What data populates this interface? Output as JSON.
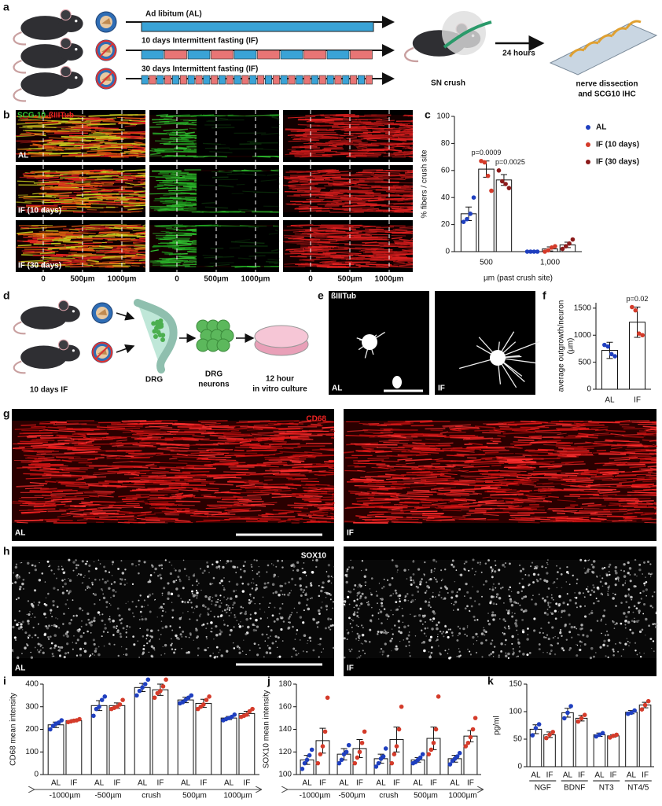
{
  "panel_a": {
    "label": "a",
    "arms": [
      "Ad libitum (AL)",
      "10 days Intermittent fasting (IF)",
      "30 days Intermittent fasting (IF)"
    ],
    "procedure": "SN crush",
    "interval": "24 hours",
    "readout": [
      "nerve dissection",
      "and SCG10 IHC"
    ]
  },
  "panel_b": {
    "label": "b",
    "stain_green": "SCG-10",
    "stain_red": "ßIIITub",
    "rows": [
      "AL",
      "IF (10 days)",
      "IF (30 days)"
    ],
    "distances": [
      "0",
      "500µm",
      "1000µm"
    ]
  },
  "panel_c": {
    "label": "c"
  },
  "panel_d": {
    "label": "d",
    "treatment": "10 days IF",
    "steps": [
      [
        "DRG"
      ],
      [
        "DRG",
        "neurons"
      ],
      [
        "12 hour",
        "in vitro culture"
      ]
    ]
  },
  "panel_e": {
    "label": "e",
    "stain": "ßIIITub",
    "conditions": [
      "AL",
      "IF"
    ]
  },
  "panel_f": {
    "label": "f"
  },
  "panel_g": {
    "label": "g",
    "stain": "CD68",
    "conditions": [
      "AL",
      "IF"
    ]
  },
  "panel_h": {
    "label": "h",
    "stain": "SOX10",
    "conditions": [
      "AL",
      "IF"
    ]
  },
  "panel_i": {
    "label": "i"
  },
  "panel_j": {
    "label": "j"
  },
  "panel_k": {
    "label": "k"
  },
  "chart_data": [
    {
      "type": "bar",
      "ylabel": "% fibers / crush site",
      "xlabel": "µm (past crush site)",
      "categories": [
        "500",
        "1,000"
      ],
      "ylim": [
        0,
        100
      ],
      "yticks": [
        0,
        20,
        40,
        60,
        80,
        100
      ],
      "legend": true,
      "series": [
        {
          "name": "AL",
          "color": "#1f3fbf",
          "values": [
            28,
            0
          ],
          "errors": [
            5,
            0
          ],
          "points": [
            [
              22,
              24,
              28,
              40
            ],
            [
              0,
              0,
              0,
              0
            ]
          ]
        },
        {
          "name": "IF (10 days)",
          "color": "#d43b2a",
          "values": [
            61,
            2
          ],
          "errors": [
            6,
            1.5
          ],
          "points": [
            [
              67,
              66,
              56,
              45
            ],
            [
              0,
              1,
              3,
              4
            ]
          ]
        },
        {
          "name": "IF (30 days)",
          "color": "#8b1a1a",
          "values": [
            53,
            5
          ],
          "errors": [
            4,
            2
          ],
          "points": [
            [
              60,
              52,
              50,
              47
            ],
            [
              2,
              4,
              6,
              9
            ]
          ]
        }
      ],
      "annotations": [
        "p=0.0009",
        "p=0.0025"
      ]
    },
    {
      "type": "bar",
      "ylabel": "average outgrowth/neuron",
      "ylabel_unit": "(µm)",
      "categories": [
        "AL",
        "IF"
      ],
      "colors": [
        "#1f3fbf",
        "#d43b2a"
      ],
      "values": [
        720,
        1240
      ],
      "errors": [
        150,
        280
      ],
      "points": [
        [
          820,
          790,
          650,
          610
        ],
        [
          1520,
          1460,
          1030,
          1000
        ]
      ],
      "ylim": [
        0,
        1600
      ],
      "yticks": [
        0,
        500,
        1000,
        1500
      ],
      "annotations": [
        "p=0.02"
      ]
    },
    {
      "type": "bar",
      "ylabel": "CD68 mean intensity",
      "categories": [
        "-1000µm",
        "-500µm",
        "crush",
        "500µm",
        "1000µm"
      ],
      "ylim": [
        0,
        400
      ],
      "yticks": [
        0,
        100,
        200,
        300,
        400
      ],
      "series": [
        {
          "name": "AL",
          "color": "#1f3fbf",
          "values": [
            220,
            305,
            385,
            330,
            250
          ],
          "errors": [
            12,
            22,
            18,
            12,
            7
          ],
          "points": [
            [
              200,
              215,
              225,
              230,
              240
            ],
            [
              260,
              290,
              300,
              330,
              345
            ],
            [
              350,
              370,
              385,
              400,
              420
            ],
            [
              315,
              320,
              330,
              340,
              350
            ],
            [
              240,
              245,
              250,
              255,
              265
            ]
          ]
        },
        {
          "name": "IF",
          "color": "#d43b2a",
          "values": [
            238,
            305,
            375,
            315,
            270
          ],
          "errors": [
            5,
            12,
            25,
            18,
            10
          ],
          "points": [
            [
              232,
              235,
              238,
              240,
              245
            ],
            [
              290,
              295,
              300,
              310,
              330
            ],
            [
              340,
              360,
              370,
              390,
              420
            ],
            [
              290,
              300,
              310,
              330,
              345
            ],
            [
              255,
              260,
              265,
              280,
              290
            ]
          ]
        }
      ]
    },
    {
      "type": "bar",
      "ylabel": "SOX10 mean intensity",
      "categories": [
        "-1000µm",
        "-500µm",
        "crush",
        "500µm",
        "1000µm"
      ],
      "ylim": [
        100,
        180
      ],
      "yticks": [
        100,
        120,
        140,
        160,
        180
      ],
      "series": [
        {
          "name": "AL",
          "color": "#1f3fbf",
          "values": [
            113,
            118,
            114,
            113,
            114
          ],
          "errors": [
            4,
            5,
            4,
            2,
            3
          ],
          "points": [
            [
              105,
              110,
              113,
              117,
              122
            ],
            [
              110,
              113,
              118,
              120,
              126
            ],
            [
              107,
              110,
              114,
              116,
              123
            ],
            [
              110,
              111,
              113,
              115,
              118
            ],
            [
              109,
              112,
              114,
              116,
              119
            ]
          ]
        },
        {
          "name": "IF",
          "color": "#d43b2a",
          "values": [
            130,
            123,
            131,
            132,
            134
          ],
          "errors": [
            11,
            8,
            11,
            10,
            5
          ],
          "points": [
            [
              110,
              118,
              125,
              138,
              168
            ],
            [
              110,
              115,
              120,
              128,
              138
            ],
            [
              110,
              118,
              125,
              140,
              160
            ],
            [
              118,
              122,
              128,
              140,
              169
            ],
            [
              125,
              128,
              133,
              140,
              150
            ]
          ]
        }
      ]
    },
    {
      "type": "bar",
      "ylabel": "pg/ml",
      "categories": [
        "NGF",
        "BDNF",
        "NT3",
        "NT4/5"
      ],
      "ylim": [
        0,
        150
      ],
      "yticks": [
        0,
        50,
        100,
        150
      ],
      "series": [
        {
          "name": "AL",
          "color": "#1f3fbf",
          "values": [
            68,
            98,
            58,
            99
          ],
          "errors": [
            8,
            8,
            3,
            3
          ],
          "points": [
            [
              57,
              70,
              77
            ],
            [
              88,
              98,
              110
            ],
            [
              55,
              58,
              61
            ],
            [
              96,
              98,
              102
            ]
          ]
        },
        {
          "name": "IF",
          "color": "#d43b2a",
          "values": [
            58,
            88,
            56,
            112
          ],
          "errors": [
            5,
            5,
            2,
            5
          ],
          "points": [
            [
              52,
              58,
              63
            ],
            [
              82,
              88,
              94
            ],
            [
              53,
              56,
              58
            ],
            [
              104,
              112,
              119
            ]
          ]
        }
      ]
    }
  ]
}
